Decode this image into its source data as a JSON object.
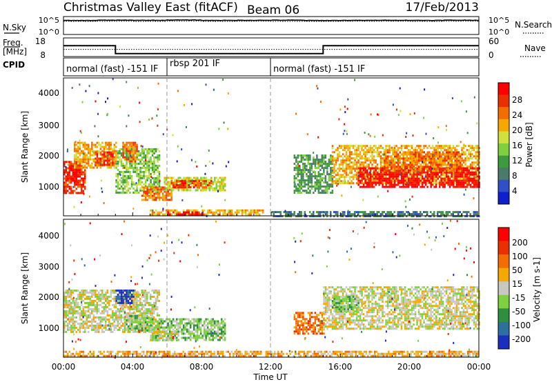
{
  "header": {
    "title": "Christmas Valley East (fitACF)",
    "beam": "Beam 06",
    "date": "17/Feb/2013"
  },
  "nsky": {
    "left_label": "N.Sky",
    "right_label": "N.Search",
    "ticks": [
      "10^5",
      "10^0"
    ],
    "sky_values": [
      16000.0,
      19000.0,
      18000.0,
      22000.0,
      17000.0,
      18000.0,
      19000.0,
      16000.0,
      17000.0,
      18000.0,
      17000.0,
      19000.0,
      18000.0
    ],
    "search_values": [
      8000.0,
      9000.0,
      8000.0,
      10000.0,
      8000.0,
      9000.0,
      8000.0,
      8000.0,
      9000.0,
      9000.0,
      8000.0,
      9000.0,
      9000.0
    ]
  },
  "freq": {
    "left_label_1": "Freq.",
    "left_label_2": "[MHz]",
    "right_label": "Nave",
    "left_ticks": [
      "18",
      "8"
    ],
    "right_ticks": [
      "60",
      "0"
    ],
    "segments": [
      {
        "t0": 0,
        "t1": 3,
        "freq_mhz": 14.0
      },
      {
        "t0": 3,
        "t1": 15,
        "freq_mhz": 9.0
      },
      {
        "t0": 15,
        "t1": 24,
        "freq_mhz": 14.0
      }
    ],
    "nave": 22
  },
  "cpid": {
    "label": "CPID",
    "segments": [
      {
        "t0": 0,
        "t1": 6,
        "text": "normal (fast) -151 IF"
      },
      {
        "t0": 6,
        "t1": 12,
        "text": "rbsp 201 IF"
      },
      {
        "t0": 12,
        "t1": 24,
        "text": "normal (fast) -151 IF"
      }
    ]
  },
  "power_panel": {
    "ylabel": "Slant Range [km]",
    "yticks": [
      "4000",
      "3000",
      "2000",
      "1000"
    ],
    "colorbar_label": "Power [dB]",
    "colorbar_ticks": [
      "28",
      "24",
      "20",
      "16",
      "12",
      "8",
      "4"
    ],
    "colors": [
      "#0d1fcf",
      "#3050c8",
      "#4a7a6a",
      "#3f9a3f",
      "#7fcf3f",
      "#cfe03f",
      "#f5a800",
      "#f46d00",
      "#e83000",
      "#ff0000"
    ]
  },
  "velocity_panel": {
    "ylabel": "Slant Range [km]",
    "yticks": [
      "4000",
      "3000",
      "2000",
      "1000"
    ],
    "colorbar_label": "Velocity [m s-1]",
    "colorbar_ticks": [
      "200",
      "100",
      "50",
      "15",
      "-15",
      "-50",
      "-100",
      "-200"
    ],
    "colors": [
      "#1a2fc0",
      "#2f6fa0",
      "#2f8f3f",
      "#7fd03f",
      "#c8c8c0",
      "#f5a800",
      "#f46d00",
      "#e83000",
      "#ff0000"
    ]
  },
  "xaxis": {
    "label": "Time UT",
    "ticks": [
      "00:00",
      "04:00",
      "08:00",
      "12:00",
      "16:00",
      "20:00",
      "00:00"
    ]
  },
  "chart_data": {
    "type": "heatmap",
    "title": "Christmas Valley East (fitACF)",
    "xlabel": "Time UT",
    "ylabel": "Slant Range [km]",
    "xlim_hours": [
      0,
      24
    ],
    "ylim_km": [
      180,
      4500
    ],
    "power_regions": [
      {
        "t0": 0.0,
        "t1": 1.2,
        "r0": 900,
        "r1": 1900,
        "level": 8
      },
      {
        "t0": 0.1,
        "t1": 0.9,
        "r0": 1300,
        "r1": 1700,
        "level": 9
      },
      {
        "t0": 0.6,
        "t1": 3.0,
        "r0": 1700,
        "r1": 2500,
        "level": 6
      },
      {
        "t0": 1.8,
        "t1": 2.8,
        "r0": 1800,
        "r1": 2200,
        "level": 8
      },
      {
        "t0": 3.0,
        "t1": 5.5,
        "r0": 900,
        "r1": 2300,
        "level": 4
      },
      {
        "t0": 3.4,
        "t1": 4.2,
        "r0": 1900,
        "r1": 2500,
        "level": 7
      },
      {
        "t0": 4.5,
        "t1": 6.2,
        "r0": 700,
        "r1": 1100,
        "level": 7
      },
      {
        "t0": 5.8,
        "t1": 9.3,
        "r0": 1000,
        "r1": 1400,
        "level": 5
      },
      {
        "t0": 6.2,
        "t1": 8.5,
        "r0": 1100,
        "r1": 1300,
        "level": 8
      },
      {
        "t0": 5.0,
        "t1": 11.5,
        "r0": 200,
        "r1": 380,
        "level": 6
      },
      {
        "t0": 6.0,
        "t1": 8.0,
        "r0": 220,
        "r1": 320,
        "level": 9
      },
      {
        "t0": 13.3,
        "t1": 15.5,
        "r0": 900,
        "r1": 2100,
        "level": 3
      },
      {
        "t0": 15.5,
        "t1": 24.0,
        "r0": 1200,
        "r1": 2400,
        "level": 6
      },
      {
        "t0": 17.0,
        "t1": 24.0,
        "r0": 1100,
        "r1": 1700,
        "level": 9
      },
      {
        "t0": 18.5,
        "t1": 23.0,
        "r0": 1600,
        "r1": 2200,
        "level": 7
      },
      {
        "t0": 12.0,
        "t1": 24.0,
        "r0": 200,
        "r1": 330,
        "level": 2
      }
    ],
    "velocity_regions": [
      {
        "t0": 0.0,
        "t1": 5.5,
        "r0": 1000,
        "r1": 2300,
        "level": 4
      },
      {
        "t0": 3.0,
        "t1": 4.0,
        "r0": 1900,
        "r1": 2300,
        "level": 0
      },
      {
        "t0": 3.5,
        "t1": 5.0,
        "r0": 1000,
        "r1": 1500,
        "level": 3
      },
      {
        "t0": 5.0,
        "t1": 9.3,
        "r0": 700,
        "r1": 1400,
        "level": 3
      },
      {
        "t0": 5.0,
        "t1": 6.5,
        "r0": 700,
        "r1": 1000,
        "level": 4
      },
      {
        "t0": 0.0,
        "t1": 24.0,
        "r0": 200,
        "r1": 380,
        "level": 5
      },
      {
        "t0": 13.3,
        "t1": 15.0,
        "r0": 900,
        "r1": 1600,
        "level": 6
      },
      {
        "t0": 15.0,
        "t1": 24.0,
        "r0": 1100,
        "r1": 2400,
        "level": 4
      },
      {
        "t0": 15.5,
        "t1": 17.0,
        "r0": 1600,
        "r1": 2100,
        "level": 3
      }
    ]
  }
}
